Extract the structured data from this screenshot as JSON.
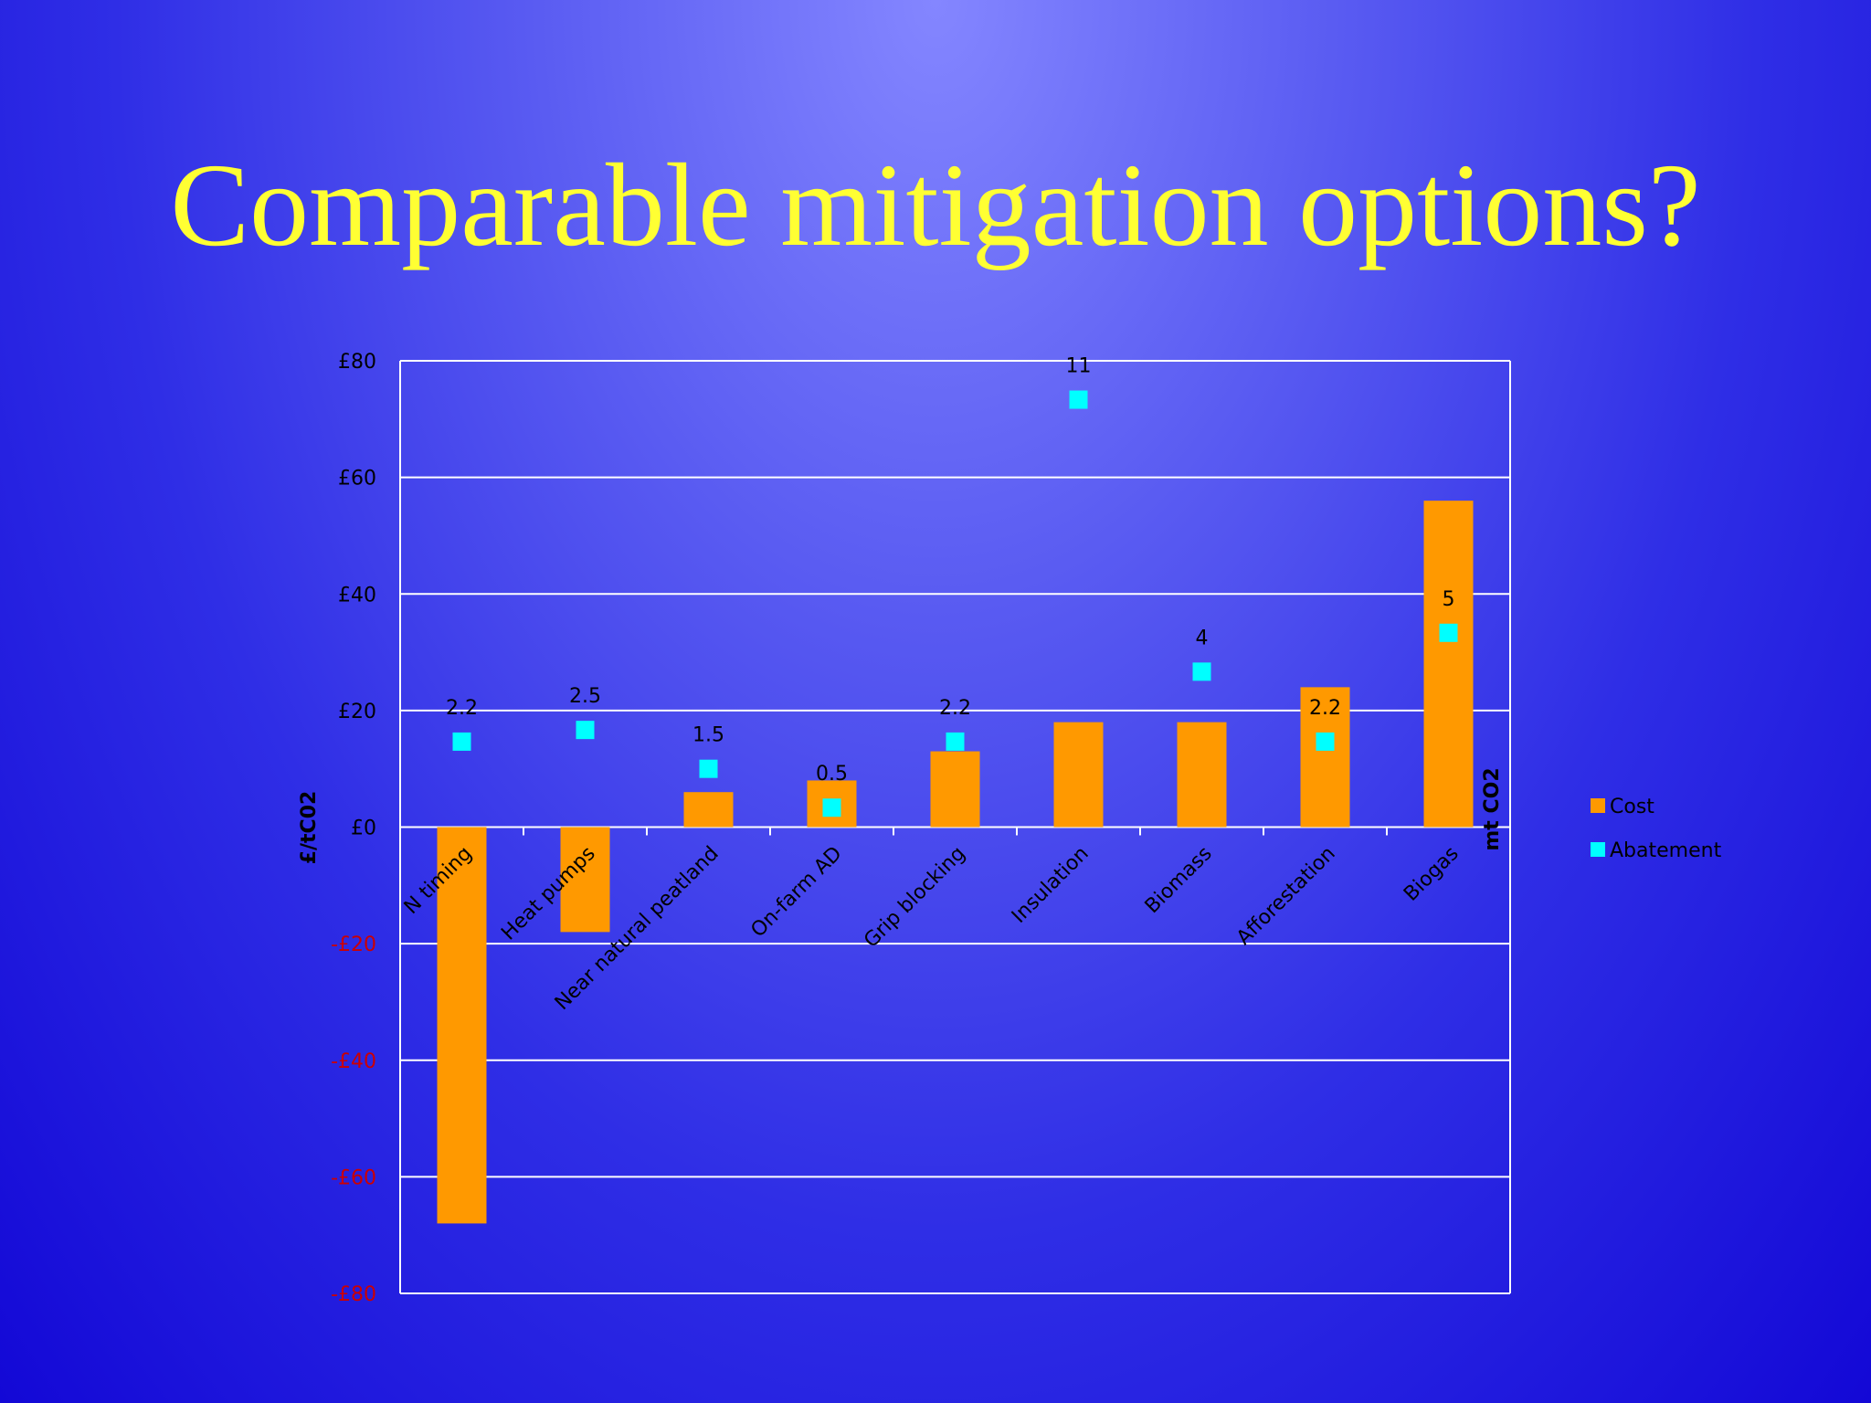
{
  "slide": {
    "title": "Comparable mitigation options?"
  },
  "chart_data": {
    "type": "bar",
    "categories": [
      "N  timing",
      "Heat pumps",
      "Near natural peatland",
      "On-farm AD",
      "Grip blocking",
      "Insulation",
      "Biomass",
      "Afforestation",
      "Biogas"
    ],
    "series": [
      {
        "name": "Cost",
        "type": "bar",
        "values": [
          -68,
          -18,
          6,
          8,
          13,
          18,
          18,
          24,
          56
        ]
      },
      {
        "name": "Abatement",
        "type": "scatter",
        "values": [
          2.2,
          2.5,
          1.5,
          0.5,
          2.2,
          11,
          4,
          2.2,
          5
        ],
        "data_labels": [
          "2.2",
          "2.5",
          "1.5",
          "0.5",
          "2.2",
          "11",
          "4",
          "2.2",
          "5"
        ]
      }
    ],
    "ylabel": "£/tC02",
    "y2label": "mt CO2",
    "ylim": [
      -80,
      80
    ],
    "y2lim": [
      -12,
      12
    ],
    "yticks": [
      "£80",
      "£60",
      "£40",
      "£20",
      "£0",
      "-£20",
      "-£40",
      "-£60",
      "-£80"
    ],
    "grid": true,
    "legend": {
      "position": "right",
      "entries": [
        "Cost",
        "Abatement"
      ]
    },
    "colors": {
      "cost": "#ff9900",
      "abatement": "#00ffff",
      "negative_tick": "#cc0000",
      "gridline": "#ffffff"
    }
  }
}
